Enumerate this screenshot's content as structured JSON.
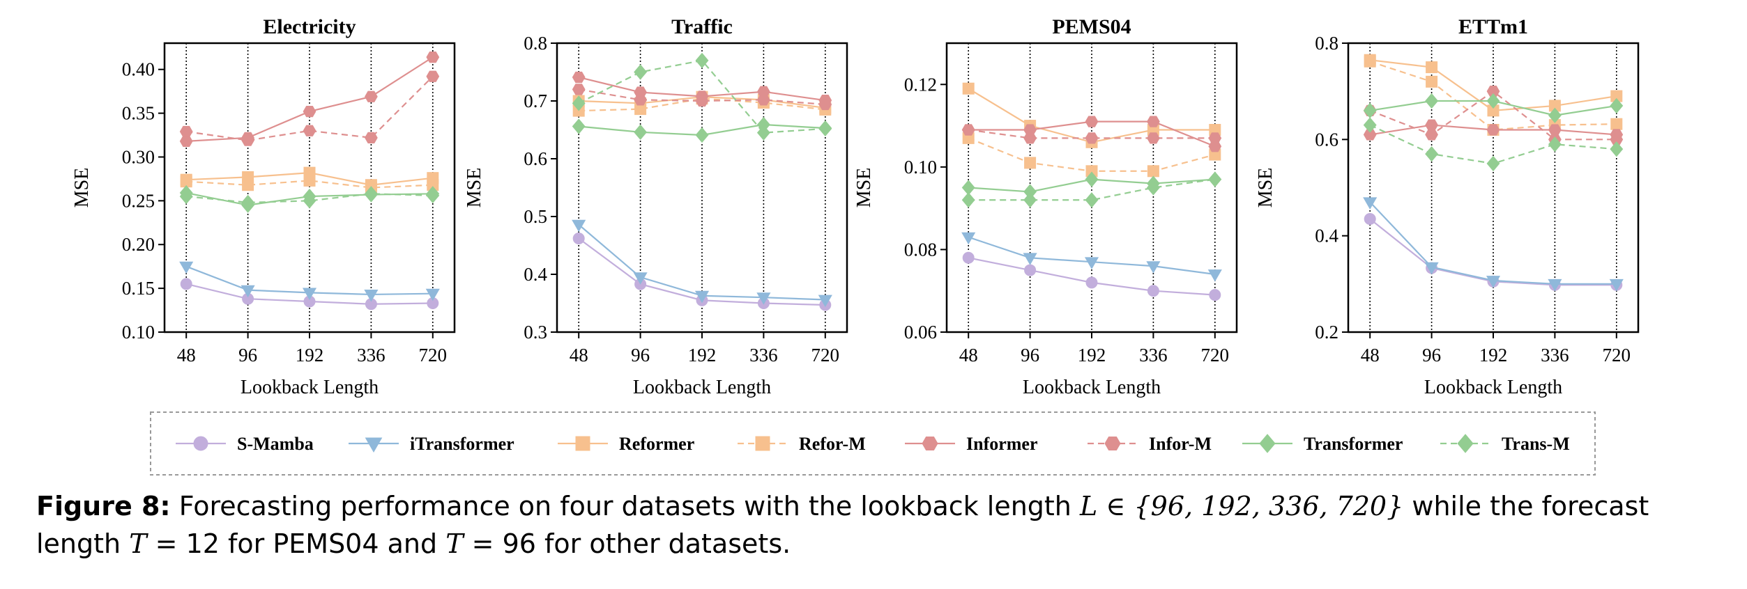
{
  "colors": {
    "S-Mamba": "#c2aedc",
    "iTransformer": "#8fb8da",
    "Reformer": "#f7c08e",
    "Refor-M": "#f7c08e",
    "Informer": "#de8f8f",
    "Infor-M": "#de8f8f",
    "Transformer": "#93cd91",
    "Trans-M": "#93cd91"
  },
  "legend": [
    {
      "name": "S-Mamba",
      "marker": "circle",
      "dashed": false
    },
    {
      "name": "iTransformer",
      "marker": "triangle-down",
      "dashed": false
    },
    {
      "name": "Reformer",
      "marker": "square",
      "dashed": false
    },
    {
      "name": "Refor-M",
      "marker": "square",
      "dashed": true
    },
    {
      "name": "Informer",
      "marker": "hexagon",
      "dashed": false
    },
    {
      "name": "Infor-M",
      "marker": "hexagon",
      "dashed": true
    },
    {
      "name": "Transformer",
      "marker": "diamond",
      "dashed": false
    },
    {
      "name": "Trans-M",
      "marker": "diamond",
      "dashed": true
    }
  ],
  "chart_data": [
    {
      "type": "line",
      "title": "Electricity",
      "xlabel": "Lookback Length",
      "ylabel": "MSE",
      "categories": [
        "48",
        "96",
        "192",
        "336",
        "720"
      ],
      "ylim": [
        0.1,
        0.43
      ],
      "yticks": [
        "0.10",
        "0.15",
        "0.20",
        "0.25",
        "0.30",
        "0.35",
        "0.40"
      ],
      "series": [
        {
          "name": "S-Mamba",
          "values": [
            0.155,
            0.138,
            0.135,
            0.132,
            0.133
          ]
        },
        {
          "name": "iTransformer",
          "values": [
            0.175,
            0.148,
            0.145,
            0.143,
            0.144
          ]
        },
        {
          "name": "Reformer",
          "values": [
            0.274,
            0.277,
            0.282,
            0.268,
            0.276
          ]
        },
        {
          "name": "Refor-M",
          "values": [
            0.272,
            0.268,
            0.273,
            0.265,
            0.268
          ]
        },
        {
          "name": "Informer",
          "values": [
            0.318,
            0.322,
            0.352,
            0.369,
            0.414
          ]
        },
        {
          "name": "Infor-M",
          "values": [
            0.329,
            0.319,
            0.33,
            0.322,
            0.392
          ]
        },
        {
          "name": "Transformer",
          "values": [
            0.259,
            0.245,
            0.255,
            0.257,
            0.258
          ]
        },
        {
          "name": "Trans-M",
          "values": [
            0.255,
            0.248,
            0.25,
            0.258,
            0.256
          ]
        }
      ]
    },
    {
      "type": "line",
      "title": "Traffic",
      "xlabel": "Lookback Length",
      "ylabel": "MSE",
      "categories": [
        "48",
        "96",
        "192",
        "336",
        "720"
      ],
      "ylim": [
        0.3,
        0.8
      ],
      "yticks": [
        "0.3",
        "0.4",
        "0.5",
        "0.6",
        "0.7",
        "0.8"
      ],
      "series": [
        {
          "name": "S-Mamba",
          "values": [
            0.462,
            0.383,
            0.355,
            0.35,
            0.347
          ]
        },
        {
          "name": "iTransformer",
          "values": [
            0.486,
            0.395,
            0.363,
            0.36,
            0.356
          ]
        },
        {
          "name": "Reformer",
          "values": [
            0.7,
            0.696,
            0.707,
            0.702,
            0.688
          ]
        },
        {
          "name": "Refor-M",
          "values": [
            0.683,
            0.686,
            0.704,
            0.697,
            0.685
          ]
        },
        {
          "name": "Informer",
          "values": [
            0.741,
            0.715,
            0.708,
            0.716,
            0.701
          ]
        },
        {
          "name": "Infor-M",
          "values": [
            0.72,
            0.702,
            0.7,
            0.702,
            0.694
          ]
        },
        {
          "name": "Transformer",
          "values": [
            0.656,
            0.646,
            0.641,
            0.659,
            0.653
          ]
        },
        {
          "name": "Trans-M",
          "values": [
            0.696,
            0.75,
            0.77,
            0.645,
            0.652
          ]
        }
      ]
    },
    {
      "type": "line",
      "title": "PEMS04",
      "xlabel": "Lookback Length",
      "ylabel": "MSE",
      "categories": [
        "48",
        "96",
        "192",
        "336",
        "720"
      ],
      "ylim": [
        0.06,
        0.13
      ],
      "yticks": [
        "0.06",
        "0.08",
        "0.10",
        "0.12"
      ],
      "series": [
        {
          "name": "S-Mamba",
          "values": [
            0.078,
            0.075,
            0.072,
            0.07,
            0.069
          ]
        },
        {
          "name": "iTransformer",
          "values": [
            0.083,
            0.078,
            0.077,
            0.076,
            0.074
          ]
        },
        {
          "name": "Reformer",
          "values": [
            0.119,
            0.11,
            0.106,
            0.109,
            0.109
          ]
        },
        {
          "name": "Refor-M",
          "values": [
            0.107,
            0.101,
            0.099,
            0.099,
            0.103
          ]
        },
        {
          "name": "Informer",
          "values": [
            0.109,
            0.109,
            0.111,
            0.111,
            0.105
          ]
        },
        {
          "name": "Infor-M",
          "values": [
            0.109,
            0.107,
            0.107,
            0.107,
            0.107
          ]
        },
        {
          "name": "Transformer",
          "values": [
            0.095,
            0.094,
            0.097,
            0.096,
            0.097
          ]
        },
        {
          "name": "Trans-M",
          "values": [
            0.092,
            0.092,
            0.092,
            0.095,
            0.097
          ]
        }
      ]
    },
    {
      "type": "line",
      "title": "ETTm1",
      "xlabel": "Lookback Length",
      "ylabel": "MSE",
      "categories": [
        "48",
        "96",
        "192",
        "336",
        "720"
      ],
      "ylim": [
        0.2,
        0.8
      ],
      "yticks": [
        "0.2",
        "0.4",
        "0.6",
        "0.8"
      ],
      "series": [
        {
          "name": "S-Mamba",
          "values": [
            0.435,
            0.333,
            0.305,
            0.298,
            0.298
          ]
        },
        {
          "name": "iTransformer",
          "values": [
            0.47,
            0.335,
            0.307,
            0.3,
            0.3
          ]
        },
        {
          "name": "Reformer",
          "values": [
            0.765,
            0.75,
            0.66,
            0.67,
            0.69
          ]
        },
        {
          "name": "Refor-M",
          "values": [
            0.762,
            0.72,
            0.62,
            0.63,
            0.632
          ]
        },
        {
          "name": "Informer",
          "values": [
            0.61,
            0.63,
            0.62,
            0.62,
            0.61
          ]
        },
        {
          "name": "Infor-M",
          "values": [
            0.66,
            0.61,
            0.7,
            0.6,
            0.6
          ]
        },
        {
          "name": "Transformer",
          "values": [
            0.66,
            0.68,
            0.68,
            0.65,
            0.67
          ]
        },
        {
          "name": "Trans-M",
          "values": [
            0.63,
            0.57,
            0.55,
            0.59,
            0.58
          ]
        }
      ]
    }
  ],
  "caption": {
    "label": "Figure 8:",
    "text_1": "Forecasting performance on four datasets with the lookback length",
    "math_1": "L ∈ {96, 192, 336, 720}",
    "text_2": "while the forecast length",
    "math_2": "T",
    "text_3": "= 12 for PEMS04 and",
    "math_3": "T",
    "text_4": "= 96 for other datasets."
  }
}
